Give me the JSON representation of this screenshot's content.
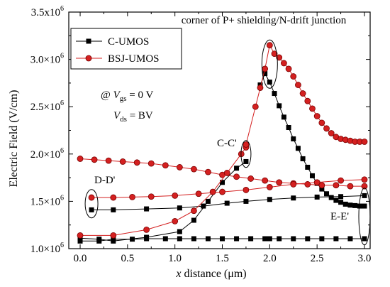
{
  "chart_data": {
    "type": "line",
    "title": "",
    "xlabel_symbol": "x",
    "xlabel_rest": " distance (μm)",
    "ylabel": "Electric Field (V/cm)",
    "xlim": [
      -0.12,
      3.06
    ],
    "ylim": [
      1000000,
      3500000
    ],
    "x_ticks": [
      0.0,
      0.5,
      1.0,
      1.5,
      2.0,
      2.5,
      3.0
    ],
    "x_tick_labels": [
      "0.0",
      "0.5",
      "1.0",
      "1.5",
      "2.0",
      "2.5",
      "3.0"
    ],
    "y_ticks": [
      1000000,
      1500000,
      2000000,
      2500000,
      3000000,
      3500000
    ],
    "y_tick_labels": [
      {
        "mantissa": "1.0×10",
        "exp": "6"
      },
      {
        "mantissa": "1.5×10",
        "exp": "6"
      },
      {
        "mantissa": "2.0×10",
        "exp": "6"
      },
      {
        "mantissa": "2.5×10",
        "exp": "6"
      },
      {
        "mantissa": "3.0×10",
        "exp": "6"
      },
      {
        "mantissa": "3.5x10",
        "exp": "6"
      }
    ],
    "legend_position": "top-left",
    "series": [
      {
        "name": "C-UMOS",
        "color": "#000000",
        "marker": "square",
        "curves": [
          {
            "label": "D-D'",
            "x": [
              0.12,
              0.35,
              0.7,
              1.05,
              1.3,
              1.55,
              1.75,
              2.0,
              2.25,
              2.5,
              2.75,
              3.0
            ],
            "y": [
              1410000,
              1410000,
              1420000,
              1430000,
              1450000,
              1480000,
              1500000,
              1520000,
              1535000,
              1545000,
              1550000,
              1560000
            ]
          },
          {
            "label": "C-C'",
            "x": [
              0.0,
              0.2,
              0.35,
              0.7,
              1.05,
              1.2,
              1.35,
              1.5,
              1.65,
              1.75
            ],
            "y": [
              1110000,
              1100000,
              1080000,
              1120000,
              1180000,
              1300000,
              1500000,
              1700000,
              1850000,
              1920000
            ]
          },
          {
            "label": "E-E'",
            "x": [
              0.0,
              0.2,
              0.35,
              0.55,
              0.7,
              0.9,
              1.05,
              1.2,
              1.35,
              1.5,
              1.65,
              1.8,
              1.95,
              2.0,
              2.1,
              2.25,
              2.4,
              2.55,
              2.7,
              2.85,
              3.0
            ],
            "y": [
              1080000,
              1080000,
              1100000,
              1100000,
              1105000,
              1105000,
              1105000,
              1105000,
              1105000,
              1105000,
              1105000,
              1105000,
              1105000,
              1105000,
              1105000,
              1105000,
              1105000,
              1105000,
              1105000,
              1105000,
              1105000
            ]
          },
          {
            "label": "peak",
            "x": [
              1.9,
              1.95,
              2.0,
              2.05,
              2.1,
              2.15,
              2.2,
              2.25,
              2.3,
              2.35,
              2.4,
              2.45,
              2.5,
              2.55,
              2.6,
              2.65,
              2.7,
              2.75,
              2.8,
              2.85,
              2.9,
              2.95,
              3.0
            ],
            "y": [
              2730000,
              2850000,
              2760000,
              2640000,
              2510000,
              2390000,
              2280000,
              2160000,
              2060000,
              1950000,
              1860000,
              1770000,
              1690000,
              1630000,
              1580000,
              1540000,
              1510000,
              1490000,
              1470000,
              1460000,
              1455000,
              1450000,
              1450000
            ]
          }
        ]
      },
      {
        "name": "BSJ-UMOS",
        "color": "#d42020",
        "marker": "circle",
        "curves": [
          {
            "label": "top",
            "x": [
              0.0,
              0.15,
              0.3,
              0.45,
              0.6,
              0.75,
              0.9,
              1.05,
              1.2,
              1.35,
              1.5,
              1.65,
              1.8,
              1.95,
              2.1,
              2.25,
              2.4,
              2.55,
              2.7,
              2.85,
              3.0
            ],
            "y": [
              1950000,
              1940000,
              1930000,
              1920000,
              1910000,
              1900000,
              1880000,
              1860000,
              1840000,
              1810000,
              1780000,
              1760000,
              1740000,
              1720000,
              1700000,
              1690000,
              1680000,
              1670000,
              1670000,
              1660000,
              1660000
            ]
          },
          {
            "label": "D-D'",
            "x": [
              0.12,
              0.35,
              0.55,
              0.75,
              1.0,
              1.25,
              1.5,
              1.75,
              2.0,
              2.25,
              2.5,
              2.75,
              3.0
            ],
            "y": [
              1540000,
              1540000,
              1545000,
              1550000,
              1560000,
              1580000,
              1600000,
              1620000,
              1650000,
              1680000,
              1700000,
              1720000,
              1730000
            ]
          },
          {
            "label": "C-C'",
            "x": [
              0.0,
              0.35,
              0.7,
              1.0,
              1.2,
              1.4,
              1.55,
              1.7,
              1.75
            ],
            "y": [
              1140000,
              1140000,
              1200000,
              1290000,
              1400000,
              1600000,
              1800000,
              2000000,
              2070000
            ]
          },
          {
            "label": "peak",
            "x": [
              1.75,
              1.85,
              1.9,
              1.95,
              2.0,
              2.05,
              2.1,
              2.15,
              2.2,
              2.25,
              2.3,
              2.35,
              2.4,
              2.45,
              2.5,
              2.55,
              2.6,
              2.65,
              2.7,
              2.75,
              2.8,
              2.85,
              2.9,
              2.95,
              3.0
            ],
            "y": [
              2100000,
              2500000,
              2700000,
              2900000,
              3150000,
              3060000,
              3020000,
              2960000,
              2900000,
              2820000,
              2730000,
              2640000,
              2560000,
              2480000,
              2400000,
              2330000,
              2270000,
              2220000,
              2180000,
              2160000,
              2150000,
              2140000,
              2130000,
              2130000,
              2130000
            ]
          }
        ]
      }
    ],
    "annotations": [
      {
        "id": "corner",
        "text": "corner of P+ shielding/N-drift junction"
      },
      {
        "id": "dd",
        "text": "D-D'"
      },
      {
        "id": "cc",
        "text": "C-C'"
      },
      {
        "id": "ee",
        "text": "E-E'"
      }
    ],
    "conditions": {
      "vgs_prefix": "@ ",
      "vgs_symbol": "V",
      "vgs_sub": "gs",
      "vgs_value": " = 0 V",
      "vds_symbol": "V",
      "vds_sub": "ds",
      "vds_value": " = BV"
    }
  }
}
